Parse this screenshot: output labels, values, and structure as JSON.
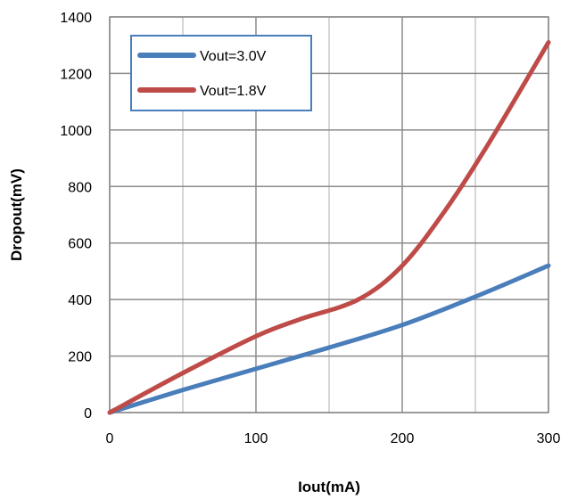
{
  "chart_data": {
    "type": "line",
    "xlabel": "Iout(mA)",
    "ylabel": "Dropout(mV)",
    "xlim": [
      0,
      300
    ],
    "ylim": [
      0,
      1400
    ],
    "x_ticks": [
      0,
      100,
      200,
      300
    ],
    "y_ticks": [
      0,
      200,
      400,
      600,
      800,
      1000,
      1200,
      1400
    ],
    "x_minor_grid": [
      50,
      150,
      250
    ],
    "grid": true,
    "legend_position": "top-left",
    "series": [
      {
        "name": "Vout=3.0V",
        "color": "#4a7ebb",
        "x": [
          0,
          50,
          100,
          150,
          200,
          250,
          300
        ],
        "y": [
          0,
          80,
          155,
          230,
          310,
          410,
          520
        ]
      },
      {
        "name": "Vout=1.8V",
        "color": "#be4b48",
        "x": [
          0,
          50,
          100,
          130,
          170,
          200,
          230,
          260,
          300
        ],
        "y": [
          0,
          140,
          270,
          330,
          400,
          520,
          720,
          960,
          1310
        ]
      }
    ]
  }
}
